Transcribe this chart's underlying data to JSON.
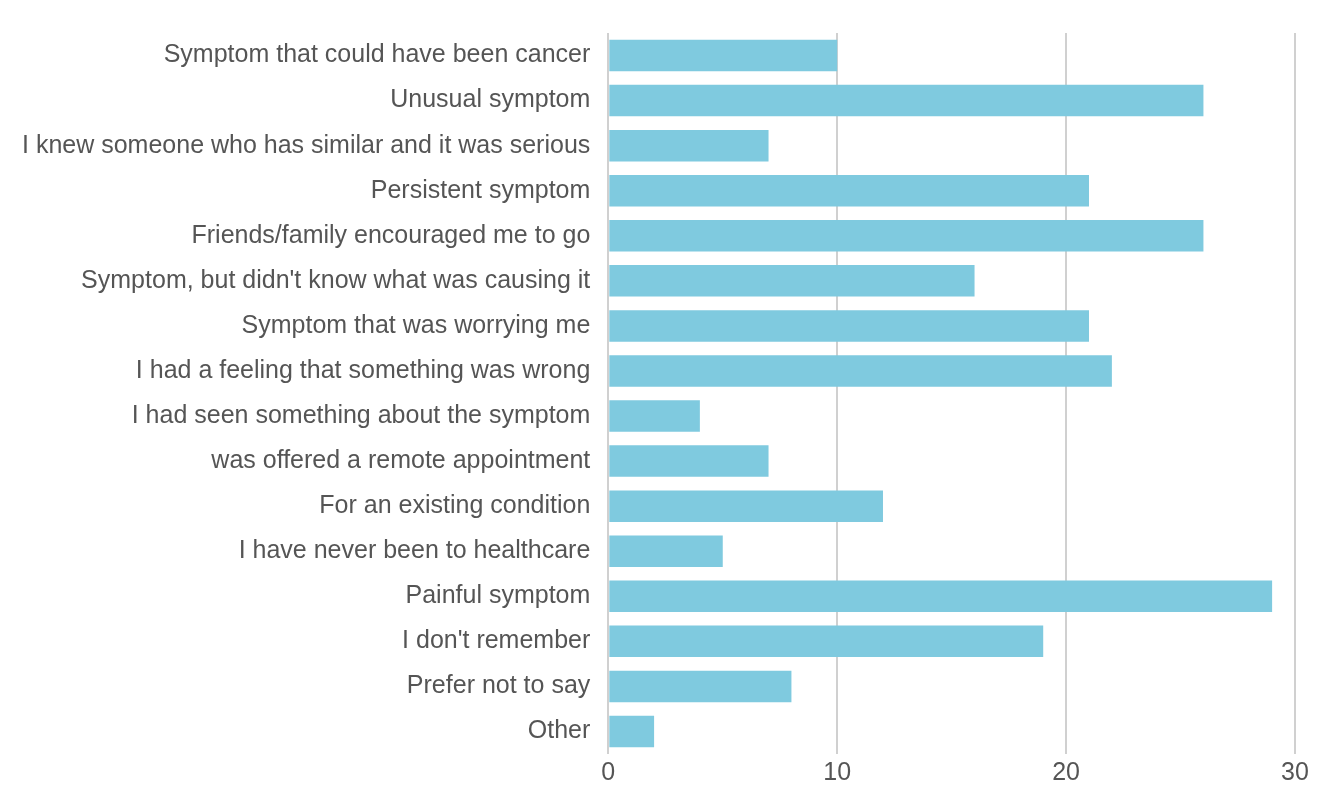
{
  "chart_data": {
    "type": "bar",
    "orientation": "horizontal",
    "categories": [
      "Symptom that could have been cancer",
      "Unusual symptom",
      "I knew someone who has similar and it was serious",
      "Persistent symptom",
      "Friends/family encouraged me to go",
      "Symptom, but didn't know what was causing it",
      "Symptom that was worrying me",
      "I had a feeling that something was wrong",
      "I had seen something about the symptom",
      "was offered a remote appointment",
      "For an existing condition",
      "I have never been to healthcare",
      "Painful symptom",
      "I don't remember",
      "Prefer not to say",
      "Other"
    ],
    "values": [
      10,
      26,
      7,
      21,
      26,
      16,
      21,
      22,
      4,
      7,
      12,
      5,
      29,
      19,
      8,
      2
    ],
    "color": "#7fcadf",
    "xlim": [
      0,
      30
    ],
    "xticks": [
      0,
      10,
      20,
      30
    ],
    "grid": "x"
  }
}
